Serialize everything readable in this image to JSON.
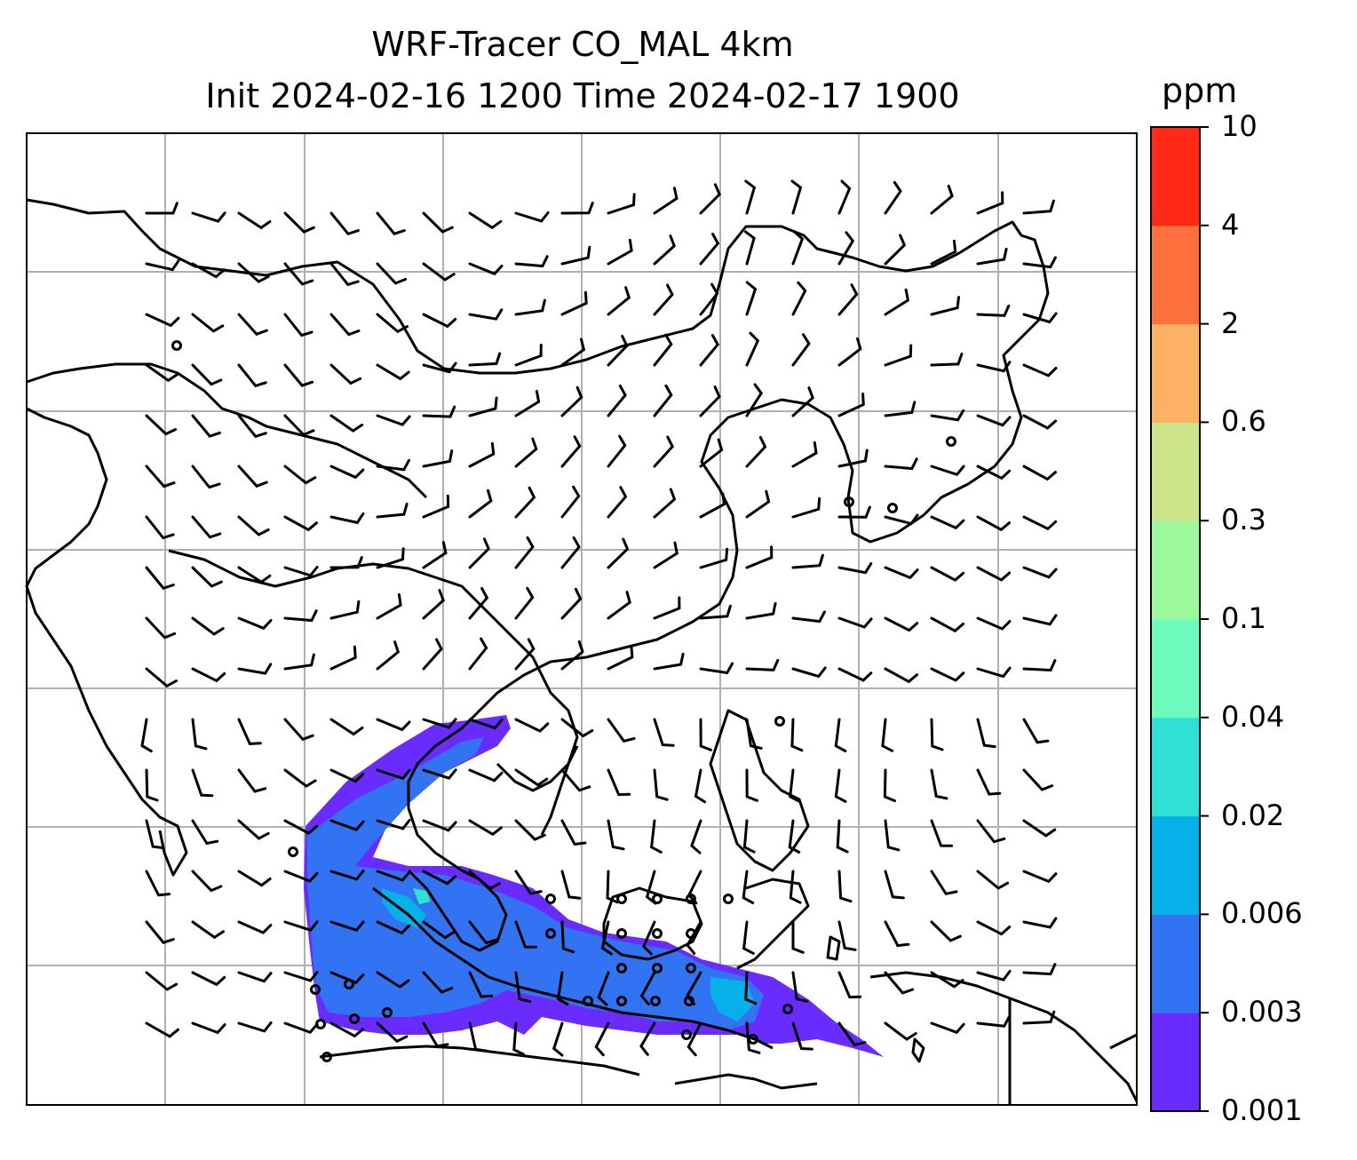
{
  "header": {
    "title": "WRF-Tracer CO_MAL 4km",
    "subtitle": "Init 2024-02-16 1200 Time 2024-02-17 1900"
  },
  "colorbar": {
    "unit": "ppm",
    "levels": [
      "0.001",
      "0.003",
      "0.006",
      "0.02",
      "0.04",
      "0.1",
      "0.3",
      "0.6",
      "2",
      "4",
      "10"
    ],
    "colors": [
      "#6a2bff",
      "#3173f2",
      "#06b1ea",
      "#2fe0d3",
      "#6cfbbd",
      "#9bf99b",
      "#cde38a",
      "#fcb164",
      "#fe703d",
      "#fe2a17"
    ]
  },
  "colors": {
    "coastline": "#000000",
    "gridline": "#b0b0b0",
    "wind_barb": "#000000"
  }
}
